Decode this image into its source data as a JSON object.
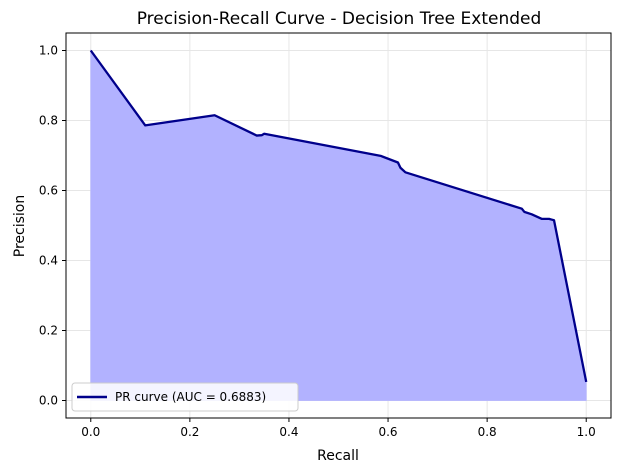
{
  "chart_data": {
    "type": "area",
    "title": "Precision-Recall Curve - Decision Tree Extended",
    "xlabel": "Recall",
    "ylabel": "Precision",
    "xlim": [
      -0.05,
      1.05
    ],
    "ylim": [
      -0.05,
      1.05
    ],
    "xticks": [
      0.0,
      0.2,
      0.4,
      0.6,
      0.8,
      1.0
    ],
    "xtick_labels": [
      "0.0",
      "0.2",
      "0.4",
      "0.6",
      "0.8",
      "1.0"
    ],
    "yticks": [
      0.0,
      0.2,
      0.4,
      0.6,
      0.8,
      1.0
    ],
    "ytick_labels": [
      "0.0",
      "0.2",
      "0.4",
      "0.6",
      "0.8",
      "1.0"
    ],
    "grid": true,
    "legend_position": "lower-left",
    "series": [
      {
        "name": "PR curve (AUC = 0.6883)",
        "color": "#00008b",
        "fill_color": "#b2b2ff",
        "x": [
          0.0,
          0.11,
          0.25,
          0.335,
          0.345,
          0.35,
          0.585,
          0.62,
          0.625,
          0.635,
          0.87,
          0.875,
          0.89,
          0.91,
          0.925,
          0.93,
          0.935,
          1.0
        ],
        "y": [
          1.0,
          0.786,
          0.815,
          0.757,
          0.758,
          0.762,
          0.699,
          0.68,
          0.665,
          0.652,
          0.548,
          0.539,
          0.532,
          0.519,
          0.519,
          0.517,
          0.515,
          0.053
        ]
      }
    ]
  }
}
